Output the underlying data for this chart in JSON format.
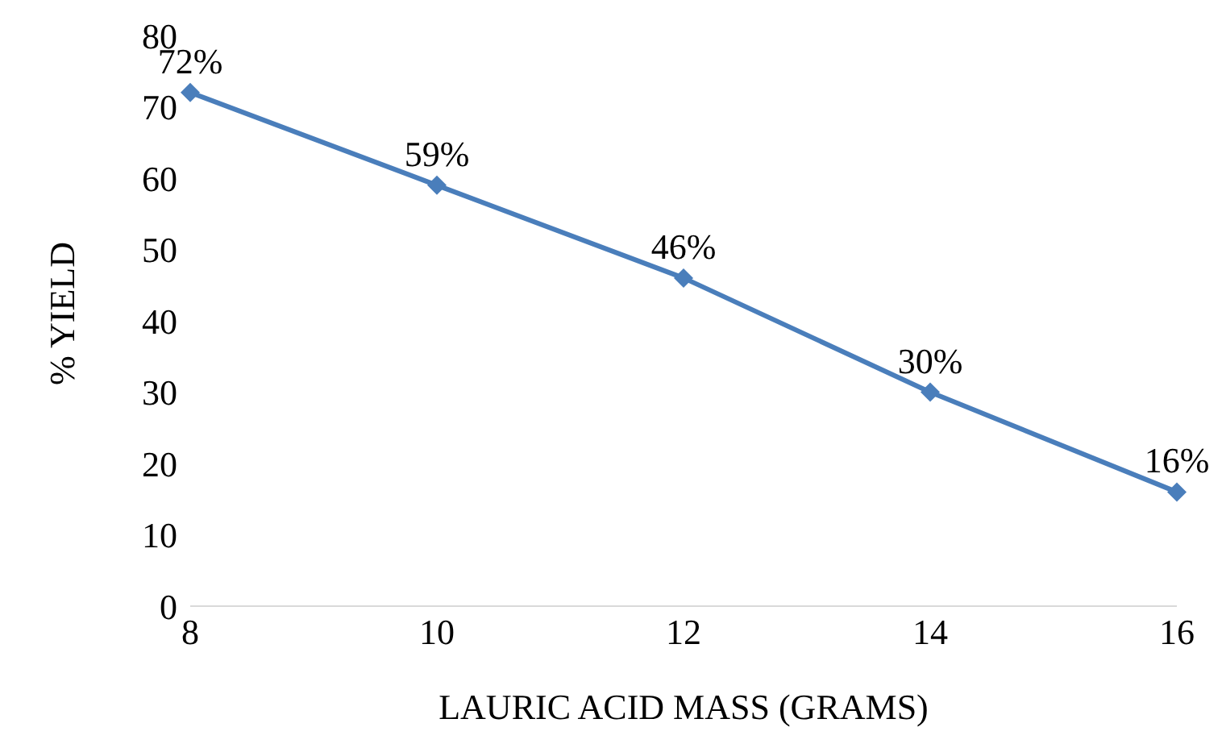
{
  "chart_data": {
    "type": "line",
    "xlabel": "LAURIC ACID MASS (GRAMS)",
    "ylabel": "%  YIELD",
    "categories": [
      "8",
      "10",
      "12",
      "14",
      "16"
    ],
    "series": [
      {
        "color": "#4a7ebb",
        "values": [
          72,
          59,
          46,
          30,
          16
        ],
        "value_labels": [
          "72%",
          "59%",
          "46%",
          "30%",
          "16%"
        ]
      }
    ],
    "ylim": [
      0,
      80
    ],
    "yticks": [
      0,
      10,
      20,
      30,
      40,
      50,
      60,
      70,
      80
    ],
    "grid": false,
    "legend": false,
    "marker": "diamond",
    "line_style": "solid"
  }
}
